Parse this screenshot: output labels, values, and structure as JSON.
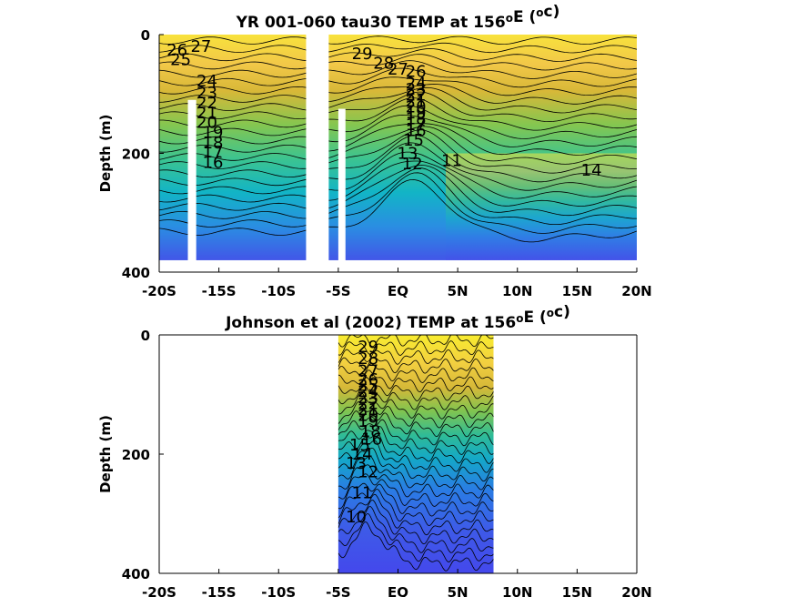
{
  "chart_data": [
    {
      "type": "heatmap",
      "title": "YR 001-060 tau30 TEMP at 156",
      "title_sup": "o",
      "title_mid": "E (",
      "title_sup2": "o",
      "title_end": "c)",
      "xlabel": "",
      "ylabel": "Depth (m)",
      "x_tick_labels": [
        "-20S",
        "-15S",
        "-10S",
        "-5S",
        "EQ",
        "5N",
        "10N",
        "15N",
        "20N"
      ],
      "x_ticks": [
        -20,
        -15,
        -10,
        -5,
        0,
        5,
        10,
        15,
        20
      ],
      "y_ticks": [
        0,
        200,
        400
      ],
      "y_tick_labels": [
        "0",
        "200",
        "400"
      ],
      "xlim": [
        -20,
        20
      ],
      "ylim": [
        0,
        400
      ],
      "data_xrange": [
        -20,
        20
      ],
      "data_max_depth": 380,
      "masked_columns": [
        [
          -17.6,
          -16.9
        ],
        [
          -7.7,
          -5.8
        ],
        [
          -5.0,
          -4.4
        ]
      ],
      "colorscale": [
        "#4050e8",
        "#2a92e0",
        "#10b6c4",
        "#40c488",
        "#8ec84c",
        "#d8b838",
        "#f4c848",
        "#f8f03c"
      ],
      "contour_labels": [
        {
          "text": "27",
          "x": -16.5,
          "y": 20
        },
        {
          "text": "26",
          "x": -18.5,
          "y": 26
        },
        {
          "text": "25",
          "x": -18.2,
          "y": 42
        },
        {
          "text": "29",
          "x": -3.0,
          "y": 32
        },
        {
          "text": "28",
          "x": -1.2,
          "y": 48
        },
        {
          "text": "27",
          "x": 0.0,
          "y": 58
        },
        {
          "text": "26",
          "x": 1.5,
          "y": 62
        },
        {
          "text": "24",
          "x": -16.0,
          "y": 78
        },
        {
          "text": "23",
          "x": -16.0,
          "y": 98
        },
        {
          "text": "22",
          "x": -16.0,
          "y": 115
        },
        {
          "text": "21",
          "x": -16.0,
          "y": 132
        },
        {
          "text": "20",
          "x": -16.0,
          "y": 148
        },
        {
          "text": "19",
          "x": -15.5,
          "y": 165
        },
        {
          "text": "18",
          "x": -15.5,
          "y": 182
        },
        {
          "text": "17",
          "x": -15.5,
          "y": 198
        },
        {
          "text": "16",
          "x": -15.5,
          "y": 215
        },
        {
          "text": "24",
          "x": 1.5,
          "y": 82
        },
        {
          "text": "23",
          "x": 1.5,
          "y": 92
        },
        {
          "text": "22",
          "x": 1.5,
          "y": 102
        },
        {
          "text": "21",
          "x": 1.5,
          "y": 112
        },
        {
          "text": "20",
          "x": 1.5,
          "y": 122
        },
        {
          "text": "19",
          "x": 1.5,
          "y": 132
        },
        {
          "text": "18",
          "x": 1.5,
          "y": 142
        },
        {
          "text": "17",
          "x": 1.5,
          "y": 152
        },
        {
          "text": "16",
          "x": 1.5,
          "y": 162
        },
        {
          "text": "15",
          "x": 1.3,
          "y": 178
        },
        {
          "text": "13",
          "x": 0.8,
          "y": 200
        },
        {
          "text": "12",
          "x": 1.2,
          "y": 218
        },
        {
          "text": "11",
          "x": 4.5,
          "y": 212
        },
        {
          "text": "14",
          "x": 16.2,
          "y": 228
        }
      ]
    },
    {
      "type": "heatmap",
      "title": "Johnson et al (2002) TEMP at 156",
      "title_sup": "o",
      "title_mid": "E (",
      "title_sup2": "o",
      "title_end": "c)",
      "xlabel": "",
      "ylabel": "Depth (m)",
      "x_tick_labels": [
        "-20S",
        "-15S",
        "-10S",
        "-5S",
        "EQ",
        "5N",
        "10N",
        "15N",
        "20N"
      ],
      "x_ticks": [
        -20,
        -15,
        -10,
        -5,
        0,
        5,
        10,
        15,
        20
      ],
      "y_ticks": [
        0,
        200,
        400
      ],
      "y_tick_labels": [
        "0",
        "200",
        "400"
      ],
      "xlim": [
        -20,
        20
      ],
      "ylim": [
        0,
        400
      ],
      "data_xrange": [
        -5,
        8
      ],
      "data_max_depth": 400,
      "masked_columns": [],
      "colorscale": [
        "#4050e8",
        "#2a92e0",
        "#10b6c4",
        "#40c488",
        "#8ec84c",
        "#d8b838",
        "#f4c848",
        "#f8f03c"
      ],
      "contour_labels": [
        {
          "text": "29",
          "x": -2.5,
          "y": 20
        },
        {
          "text": "28",
          "x": -2.5,
          "y": 40
        },
        {
          "text": "27",
          "x": -2.5,
          "y": 60
        },
        {
          "text": "26",
          "x": -2.5,
          "y": 75
        },
        {
          "text": "25",
          "x": -2.5,
          "y": 85
        },
        {
          "text": "24",
          "x": -2.5,
          "y": 95
        },
        {
          "text": "23",
          "x": -2.5,
          "y": 105
        },
        {
          "text": "22",
          "x": -2.5,
          "y": 115
        },
        {
          "text": "21",
          "x": -2.5,
          "y": 125
        },
        {
          "text": "20",
          "x": -2.5,
          "y": 135
        },
        {
          "text": "19",
          "x": -2.5,
          "y": 145
        },
        {
          "text": "18",
          "x": -2.3,
          "y": 162
        },
        {
          "text": "16",
          "x": -2.2,
          "y": 175
        },
        {
          "text": "15",
          "x": -3.2,
          "y": 185
        },
        {
          "text": "14",
          "x": -3.0,
          "y": 200
        },
        {
          "text": "13",
          "x": -3.5,
          "y": 215
        },
        {
          "text": "12",
          "x": -2.5,
          "y": 230
        },
        {
          "text": "11",
          "x": -3.0,
          "y": 265
        },
        {
          "text": "10",
          "x": -3.5,
          "y": 305
        }
      ]
    }
  ]
}
